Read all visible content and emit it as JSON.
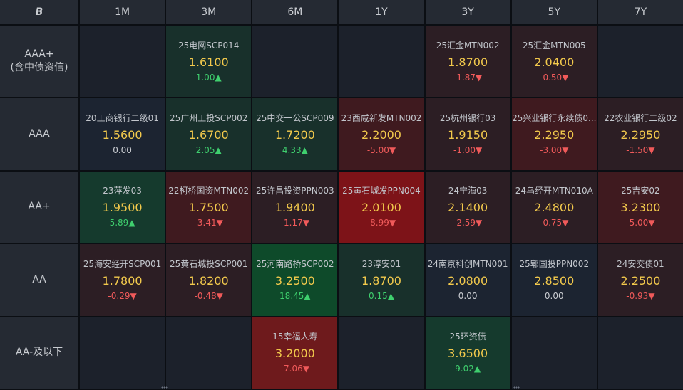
{
  "logo_text": "B",
  "columns": [
    "1M",
    "3M",
    "6M",
    "1Y",
    "3Y",
    "5Y",
    "7Y"
  ],
  "rows": [
    {
      "label_lines": [
        "AAA+",
        "(含中债资信)"
      ],
      "cells": [
        null,
        {
          "name": "25电网SCP014",
          "yield": "1.6100",
          "change": "1.00",
          "dir": "up",
          "shade": "g1"
        },
        null,
        null,
        {
          "name": "25汇金MTN002",
          "yield": "1.8700",
          "change": "-1.87",
          "dir": "down",
          "shade": "r1"
        },
        {
          "name": "25汇金MTN005",
          "yield": "2.0400",
          "change": "-0.50",
          "dir": "down",
          "shade": "r1"
        },
        null
      ]
    },
    {
      "label_lines": [
        "AAA"
      ],
      "cells": [
        {
          "name": "20工商银行二级01",
          "yield": "1.5600",
          "change": "0.00",
          "dir": "flat",
          "shade": "neutral"
        },
        {
          "name": "25广州工投SCP002",
          "yield": "1.6700",
          "change": "2.05",
          "dir": "up",
          "shade": "g1"
        },
        {
          "name": "25中交一公SCP009",
          "yield": "1.7200",
          "change": "4.33",
          "dir": "up",
          "shade": "g1"
        },
        {
          "name": "23西咸新发MTN002",
          "yield": "2.2000",
          "change": "-5.00",
          "dir": "down",
          "shade": "r2"
        },
        {
          "name": "25杭州银行03",
          "yield": "1.9150",
          "change": "-1.00",
          "dir": "down",
          "shade": "r1"
        },
        {
          "name": "25兴业银行永续债0...",
          "yield": "2.2950",
          "change": "-3.00",
          "dir": "down",
          "shade": "r2"
        },
        {
          "name": "22农业银行二级02",
          "yield": "2.2950",
          "change": "-1.50",
          "dir": "down",
          "shade": "r1"
        }
      ]
    },
    {
      "label_lines": [
        "AA+"
      ],
      "cells": [
        {
          "name": "23萍发03",
          "yield": "1.9500",
          "change": "5.89",
          "dir": "up",
          "shade": "g2"
        },
        {
          "name": "22柯桥国资MTN002",
          "yield": "1.7500",
          "change": "-3.41",
          "dir": "down",
          "shade": "r2"
        },
        {
          "name": "25许昌投资PPN003",
          "yield": "1.9400",
          "change": "-1.17",
          "dir": "down",
          "shade": "r1"
        },
        {
          "name": "25黄石城发PPN004",
          "yield": "2.0100",
          "change": "-8.99",
          "dir": "down",
          "shade": "r4"
        },
        {
          "name": "24宁海03",
          "yield": "2.1400",
          "change": "-2.59",
          "dir": "down",
          "shade": "r1"
        },
        {
          "name": "24乌经开MTN010A",
          "yield": "2.4800",
          "change": "-0.75",
          "dir": "down",
          "shade": "r1"
        },
        {
          "name": "25吉安02",
          "yield": "3.2300",
          "change": "-5.00",
          "dir": "down",
          "shade": "r2"
        }
      ]
    },
    {
      "label_lines": [
        "AA"
      ],
      "cells": [
        {
          "name": "25海安经开SCP001",
          "yield": "1.7800",
          "change": "-0.29",
          "dir": "down",
          "shade": "r1"
        },
        {
          "name": "25黄石城投SCP001",
          "yield": "1.8200",
          "change": "-0.48",
          "dir": "down",
          "shade": "r1"
        },
        {
          "name": "25河南路桥SCP002",
          "yield": "3.2500",
          "change": "18.45",
          "dir": "up",
          "shade": "g3"
        },
        {
          "name": "23淳安01",
          "yield": "1.8700",
          "change": "0.15",
          "dir": "up",
          "shade": "g1"
        },
        {
          "name": "24南京科创MTN001",
          "yield": "2.0800",
          "change": "0.00",
          "dir": "flat",
          "shade": "neutral"
        },
        {
          "name": "25郫国投PPN002",
          "yield": "2.8500",
          "change": "0.00",
          "dir": "flat",
          "shade": "neutral"
        },
        {
          "name": "24安交债01",
          "yield": "2.2500",
          "change": "-0.93",
          "dir": "down",
          "shade": "r1"
        }
      ]
    },
    {
      "label_lines": [
        "AA-及以下"
      ],
      "cells": [
        null,
        null,
        {
          "name": "15幸福人寿",
          "yield": "3.2000",
          "change": "-7.06",
          "dir": "down",
          "shade": "r3"
        },
        null,
        {
          "name": "25环资债",
          "yield": "3.6500",
          "change": "9.02",
          "dir": "up",
          "shade": "g2"
        },
        null,
        null
      ]
    }
  ],
  "arrows": {
    "up": "▲",
    "down": "▼",
    "flat": ""
  },
  "colors": {
    "yield": "#f2c94c",
    "up": "#3fcf6e",
    "down": "#f05a5a",
    "header_bg": "#252a33"
  }
}
